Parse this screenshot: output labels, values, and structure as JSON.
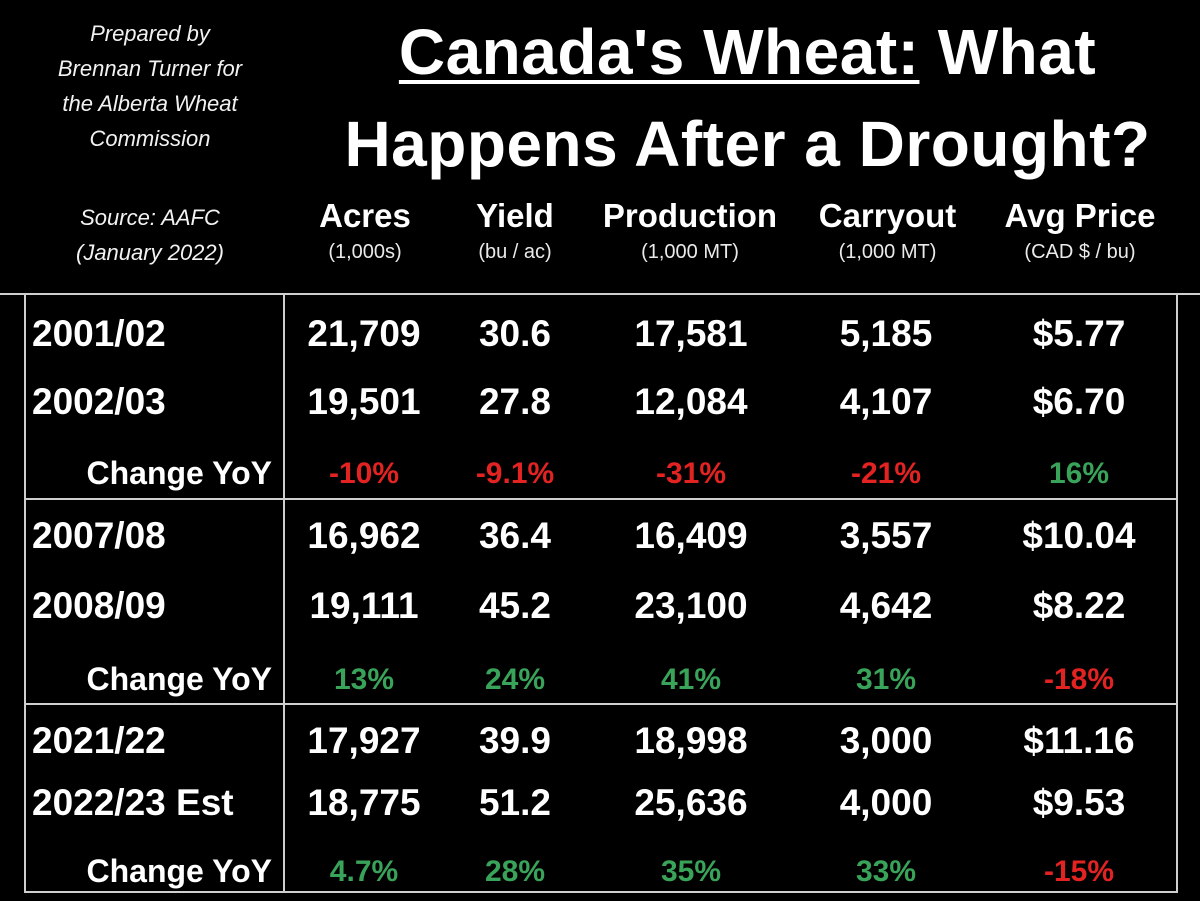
{
  "credit": {
    "prepared_lines": [
      "Prepared by",
      "Brennan Turner for",
      "the Alberta Wheat",
      "Commission"
    ],
    "source_lines": [
      "Source: AAFC",
      "(January 2022)"
    ]
  },
  "title": {
    "underlined_part": "Canada's Wheat:",
    "rest_line1": " What",
    "line2": "Happens After a Drought?"
  },
  "colors": {
    "negative": "#e32222",
    "positive": "#3aa35a",
    "background": "#000000",
    "text": "#ffffff"
  },
  "chart_data": {
    "type": "table",
    "columns": [
      {
        "name": "Acres",
        "unit": "(1,000s)"
      },
      {
        "name": "Yield",
        "unit": "(bu / ac)"
      },
      {
        "name": "Production",
        "unit": "(1,000 MT)"
      },
      {
        "name": "Carryout",
        "unit": "(1,000 MT)"
      },
      {
        "name": "Avg Price",
        "unit": "(CAD $ / bu)"
      }
    ],
    "groups": [
      {
        "rows": [
          {
            "year": "2001/02",
            "values": [
              "21,709",
              "30.6",
              "17,581",
              "5,185",
              "$5.77"
            ]
          },
          {
            "year": "2002/03",
            "values": [
              "19,501",
              "27.8",
              "12,084",
              "4,107",
              "$6.70"
            ]
          }
        ],
        "change_label": "Change YoY",
        "change": [
          "-10%",
          "-9.1%",
          "-31%",
          "-21%",
          "16%"
        ],
        "change_sign": [
          "neg",
          "neg",
          "neg",
          "neg",
          "pos"
        ]
      },
      {
        "rows": [
          {
            "year": "2007/08",
            "values": [
              "16,962",
              "36.4",
              "16,409",
              "3,557",
              "$10.04"
            ]
          },
          {
            "year": "2008/09",
            "values": [
              "19,111",
              "45.2",
              "23,100",
              "4,642",
              "$8.22"
            ]
          }
        ],
        "change_label": "Change YoY",
        "change": [
          "13%",
          "24%",
          "41%",
          "31%",
          "-18%"
        ],
        "change_sign": [
          "pos",
          "pos",
          "pos",
          "pos",
          "neg"
        ]
      },
      {
        "rows": [
          {
            "year": "2021/22",
            "values": [
              "17,927",
              "39.9",
              "18,998",
              "3,000",
              "$11.16"
            ]
          },
          {
            "year": "2022/23 Est",
            "values": [
              "18,775",
              "51.2",
              "25,636",
              "4,000",
              "$9.53"
            ]
          }
        ],
        "change_label": "Change YoY",
        "change": [
          "4.7%",
          "28%",
          "35%",
          "33%",
          "-15%"
        ],
        "change_sign": [
          "pos",
          "pos",
          "pos",
          "pos",
          "neg"
        ]
      }
    ]
  }
}
